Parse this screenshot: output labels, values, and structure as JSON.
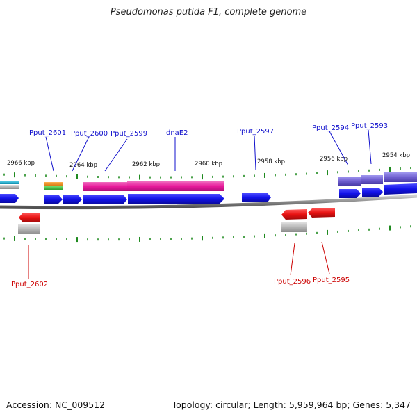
{
  "title": "Pseudomonas putida F1, complete genome",
  "footer": {
    "accession": "Accession: NC_009512",
    "summary": "Topology: circular; Length: 5,959,964 bp; Genes: 5,347"
  },
  "colors": {
    "forward_gene": "#1010e0",
    "reverse_gene": "#e01010",
    "rna": "#e8199a",
    "pseudo_gray": "#b4b4b4",
    "backbone": "#8a8a8a",
    "tick": "#1f8a1f",
    "scale_label": "#111111",
    "forward_label": "#1010cc",
    "reverse_label": "#cc0000",
    "operon": "#7060d0",
    "teal": "#18b0c8",
    "orange": "#f08a10",
    "green": "#30c030"
  },
  "scale_labels": [
    "2966 kbp",
    "2964 kbp",
    "2962 kbp",
    "2960 kbp",
    "2958 kbp",
    "2956 kbp",
    "2954 kbp"
  ],
  "forward_gene_labels": [
    "Pput_2601",
    "Pput_2600",
    "Pput_2599",
    "dnaE2",
    "Pput_2597",
    "Pput_2594",
    "Pput_2593"
  ],
  "reverse_gene_labels": [
    "Pput_2602",
    "Pput_2596",
    "Pput_2595"
  ]
}
